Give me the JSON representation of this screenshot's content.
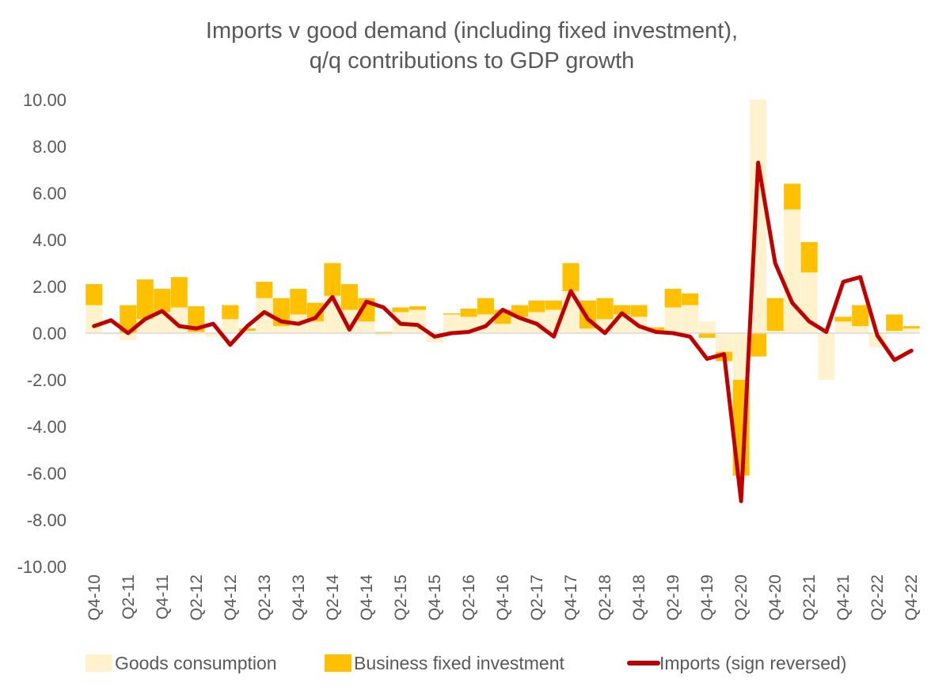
{
  "chart_data": {
    "type": "bar",
    "stacked": true,
    "title": "Imports v good demand (including fixed investment),",
    "subtitle": "q/q contributions to GDP growth",
    "xlabel": "",
    "ylabel": "",
    "ylim": [
      -10,
      10
    ],
    "ytick_step": 2,
    "ytick_format": "0.00",
    "grid": false,
    "legend_position": "bottom",
    "categories": [
      "Q4-10",
      "Q1-11",
      "Q2-11",
      "Q3-11",
      "Q4-11",
      "Q1-12",
      "Q2-12",
      "Q3-12",
      "Q4-12",
      "Q1-13",
      "Q2-13",
      "Q3-13",
      "Q4-13",
      "Q1-14",
      "Q2-14",
      "Q3-14",
      "Q4-14",
      "Q1-15",
      "Q2-15",
      "Q3-15",
      "Q4-15",
      "Q1-16",
      "Q2-16",
      "Q3-16",
      "Q4-16",
      "Q1-17",
      "Q2-17",
      "Q3-17",
      "Q4-17",
      "Q1-18",
      "Q2-18",
      "Q3-18",
      "Q4-18",
      "Q1-19",
      "Q2-19",
      "Q3-19",
      "Q4-19",
      "Q1-20",
      "Q2-20",
      "Q3-20",
      "Q4-20",
      "Q1-21",
      "Q2-21",
      "Q3-21",
      "Q4-21",
      "Q1-22",
      "Q2-22",
      "Q3-22",
      "Q4-22"
    ],
    "series": [
      {
        "name": "Goods consumption",
        "kind": "bar",
        "color": "#FFF2CC",
        "values": [
          1.2,
          -0.05,
          -0.3,
          0.6,
          0.9,
          1.1,
          0.05,
          -0.15,
          0.6,
          0.1,
          1.5,
          0.3,
          0.8,
          0.5,
          1.6,
          1.0,
          0.5,
          -0.1,
          0.9,
          1.0,
          -0.4,
          0.8,
          0.7,
          0.8,
          0.4,
          0.7,
          0.9,
          1.0,
          1.8,
          0.2,
          0.6,
          0.8,
          0.7,
          0.05,
          1.1,
          1.2,
          0.5,
          -0.8,
          -2.0,
          10.0,
          0.1,
          5.3,
          2.6,
          -2.0,
          0.5,
          0.3,
          -0.6,
          0.1,
          0.2
        ]
      },
      {
        "name": "Business fixed investment",
        "kind": "bar",
        "color": "#FFC000",
        "values": [
          0.9,
          0.0,
          1.2,
          1.7,
          1.0,
          1.3,
          1.1,
          0.0,
          0.6,
          0.1,
          0.7,
          1.2,
          1.1,
          0.8,
          1.4,
          1.1,
          1.0,
          0.05,
          0.2,
          0.15,
          0.0,
          0.05,
          0.35,
          0.7,
          0.6,
          0.5,
          0.5,
          0.4,
          1.2,
          1.2,
          0.9,
          0.4,
          0.5,
          0.2,
          0.8,
          0.5,
          -0.2,
          -0.4,
          -4.1,
          -1.0,
          1.4,
          1.1,
          1.3,
          0.0,
          0.2,
          0.9,
          0.0,
          0.7,
          0.1
        ]
      },
      {
        "name": "Imports (sign reversed)",
        "kind": "line",
        "color": "#C00000",
        "values": [
          0.3,
          0.55,
          0.0,
          0.6,
          0.95,
          0.3,
          0.2,
          0.4,
          -0.5,
          0.3,
          0.9,
          0.5,
          0.4,
          0.65,
          1.55,
          0.15,
          1.35,
          1.1,
          0.4,
          0.35,
          -0.15,
          0.0,
          0.05,
          0.3,
          1.0,
          0.65,
          0.4,
          -0.15,
          1.8,
          0.6,
          0.0,
          0.85,
          0.3,
          0.05,
          0.0,
          -0.15,
          -1.1,
          -0.9,
          -7.2,
          7.3,
          3.0,
          1.3,
          0.5,
          0.05,
          2.2,
          2.4,
          -0.1,
          -1.15,
          -0.75
        ]
      }
    ]
  }
}
